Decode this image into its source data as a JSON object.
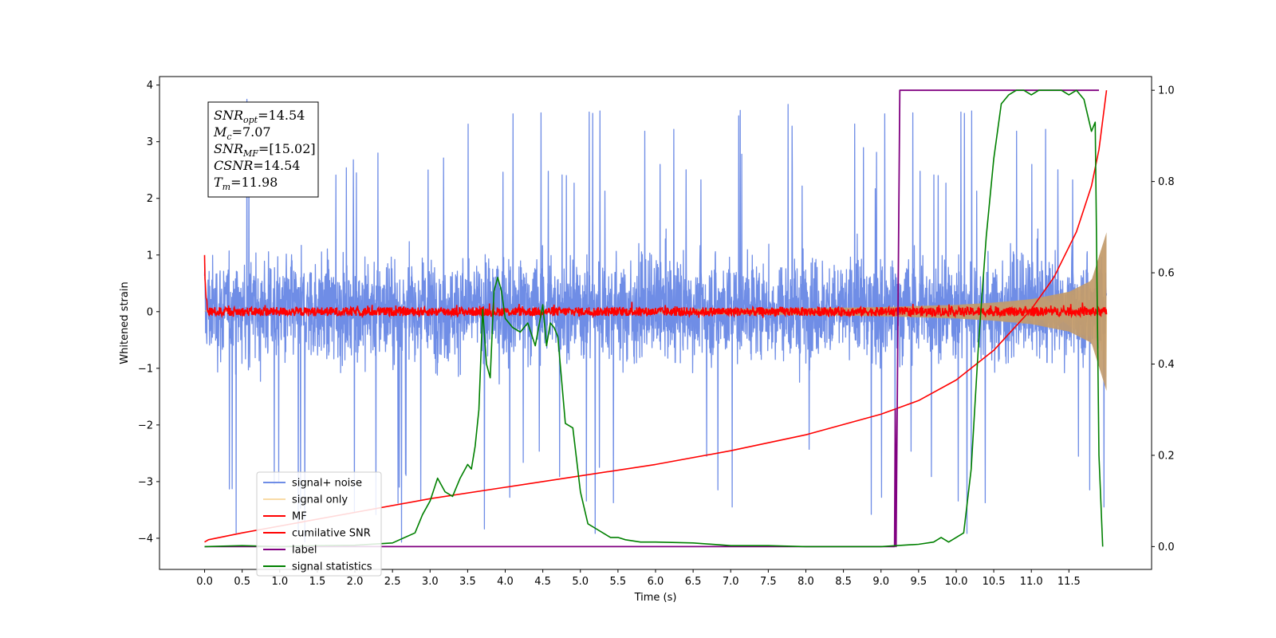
{
  "chart_data": {
    "type": "line",
    "title": "",
    "xlabel": "Time (s)",
    "ylabel": "Whitened strain",
    "xlim": [
      -0.6,
      12.6
    ],
    "ylim_left": [
      -4.55,
      4.15
    ],
    "ylim_right": [
      -0.05,
      1.03
    ],
    "x_ticks": [
      "0.0",
      "0.5",
      "1.0",
      "1.5",
      "2.0",
      "2.5",
      "3.0",
      "3.5",
      "4.0",
      "4.5",
      "5.0",
      "5.5",
      "6.0",
      "6.5",
      "7.0",
      "7.5",
      "8.0",
      "8.5",
      "9.0",
      "9.5",
      "10.0",
      "10.5",
      "11.0",
      "11.5"
    ],
    "y_ticks_left": [
      "4",
      "3",
      "2",
      "1",
      "0",
      "−1",
      "−2",
      "−3",
      "−4"
    ],
    "y_ticks_right": [
      "1.0",
      "0.8",
      "0.6",
      "0.4",
      "0.2",
      "0.0"
    ],
    "grid": false,
    "legend_position": "lower-left",
    "legend": [
      "signal+ noise",
      "signal only",
      "MF",
      "cumilative SNR",
      "label",
      "signal statistics"
    ],
    "annotation": [
      {
        "base": "SNR",
        "sub": "opt",
        "value": "=14.54"
      },
      {
        "base": "M",
        "sub": "c",
        "value": "=7.07"
      },
      {
        "base": "SNR",
        "sub": "MF",
        "value": "=[15.02]"
      },
      {
        "base": "CSNR",
        "sub": "",
        "value": "=14.54"
      },
      {
        "base": "T",
        "sub": "m",
        "value": "=11.98"
      }
    ],
    "series": [
      {
        "name": "signal+ noise",
        "axis": "left",
        "color": "#6f8de6",
        "description": "noise band",
        "x_range": [
          0.0,
          12.0
        ],
        "envelope_low": -1.5,
        "envelope_high": 1.6,
        "spike_low": -4.1,
        "spike_high": 3.8
      },
      {
        "name": "signal only",
        "axis": "left",
        "color": "#f5c36b",
        "description": "chirp",
        "x": [
          0.0,
          4.0,
          6.0,
          8.0,
          9.0,
          10.0,
          10.5,
          11.0,
          11.5,
          11.8,
          12.0
        ],
        "amplitude": [
          0.02,
          0.03,
          0.04,
          0.06,
          0.08,
          0.12,
          0.16,
          0.22,
          0.35,
          0.55,
          1.4
        ]
      },
      {
        "name": "MF",
        "axis": "left",
        "color": "#ff0000",
        "description": "matched filter",
        "x_range": [
          0.0,
          12.0
        ],
        "start_value": 1.0,
        "baseline": 0.0,
        "band": 0.1
      },
      {
        "name": "cumilative SNR",
        "axis": "right",
        "color": "#ff0000",
        "x": [
          0.0,
          0.05,
          0.5,
          1.0,
          2.0,
          3.0,
          4.0,
          5.0,
          6.0,
          7.0,
          8.0,
          9.0,
          9.5,
          10.0,
          10.5,
          11.0,
          11.3,
          11.6,
          11.8,
          11.9,
          12.0
        ],
        "y": [
          0.01,
          0.015,
          0.03,
          0.045,
          0.075,
          0.105,
          0.13,
          0.155,
          0.18,
          0.21,
          0.245,
          0.29,
          0.32,
          0.365,
          0.43,
          0.52,
          0.59,
          0.69,
          0.79,
          0.87,
          1.0
        ]
      },
      {
        "name": "label",
        "axis": "right",
        "color": "#800080",
        "x": [
          0.0,
          9.18,
          9.19,
          9.2,
          9.25,
          11.9
        ],
        "y": [
          0.0,
          0.0,
          0.3,
          0.0,
          1.0,
          1.0
        ]
      },
      {
        "name": "signal statistics",
        "axis": "right",
        "color": "#008000",
        "x": [
          0.0,
          0.5,
          1.0,
          1.5,
          2.0,
          2.5,
          2.8,
          2.9,
          3.0,
          3.1,
          3.2,
          3.3,
          3.4,
          3.5,
          3.55,
          3.6,
          3.65,
          3.7,
          3.75,
          3.8,
          3.85,
          3.9,
          3.95,
          4.0,
          4.05,
          4.1,
          4.2,
          4.3,
          4.4,
          4.5,
          4.55,
          4.6,
          4.65,
          4.7,
          4.8,
          4.9,
          5.0,
          5.1,
          5.2,
          5.3,
          5.4,
          5.5,
          5.6,
          5.8,
          6.0,
          6.5,
          7.0,
          7.5,
          8.0,
          8.5,
          9.0,
          9.2,
          9.5,
          9.7,
          9.8,
          9.9,
          10.0,
          10.1,
          10.15,
          10.2,
          10.3,
          10.4,
          10.5,
          10.6,
          10.7,
          10.8,
          10.9,
          11.0,
          11.1,
          11.2,
          11.4,
          11.5,
          11.6,
          11.7,
          11.8,
          11.85,
          11.9,
          11.95
        ],
        "y": [
          0.0,
          0.002,
          0.0,
          0.002,
          0.003,
          0.008,
          0.03,
          0.07,
          0.1,
          0.15,
          0.12,
          0.11,
          0.15,
          0.18,
          0.17,
          0.22,
          0.3,
          0.52,
          0.4,
          0.37,
          0.56,
          0.59,
          0.56,
          0.5,
          0.49,
          0.48,
          0.47,
          0.49,
          0.44,
          0.53,
          0.44,
          0.49,
          0.48,
          0.46,
          0.27,
          0.26,
          0.12,
          0.05,
          0.04,
          0.03,
          0.02,
          0.02,
          0.015,
          0.01,
          0.01,
          0.008,
          0.002,
          0.002,
          0.0,
          0.0,
          0.0,
          0.002,
          0.005,
          0.01,
          0.02,
          0.01,
          0.02,
          0.03,
          0.1,
          0.17,
          0.45,
          0.68,
          0.85,
          0.97,
          0.99,
          1.0,
          1.0,
          0.99,
          1.0,
          1.0,
          1.0,
          0.99,
          1.0,
          0.98,
          0.91,
          0.93,
          0.2,
          0.0
        ]
      }
    ]
  }
}
